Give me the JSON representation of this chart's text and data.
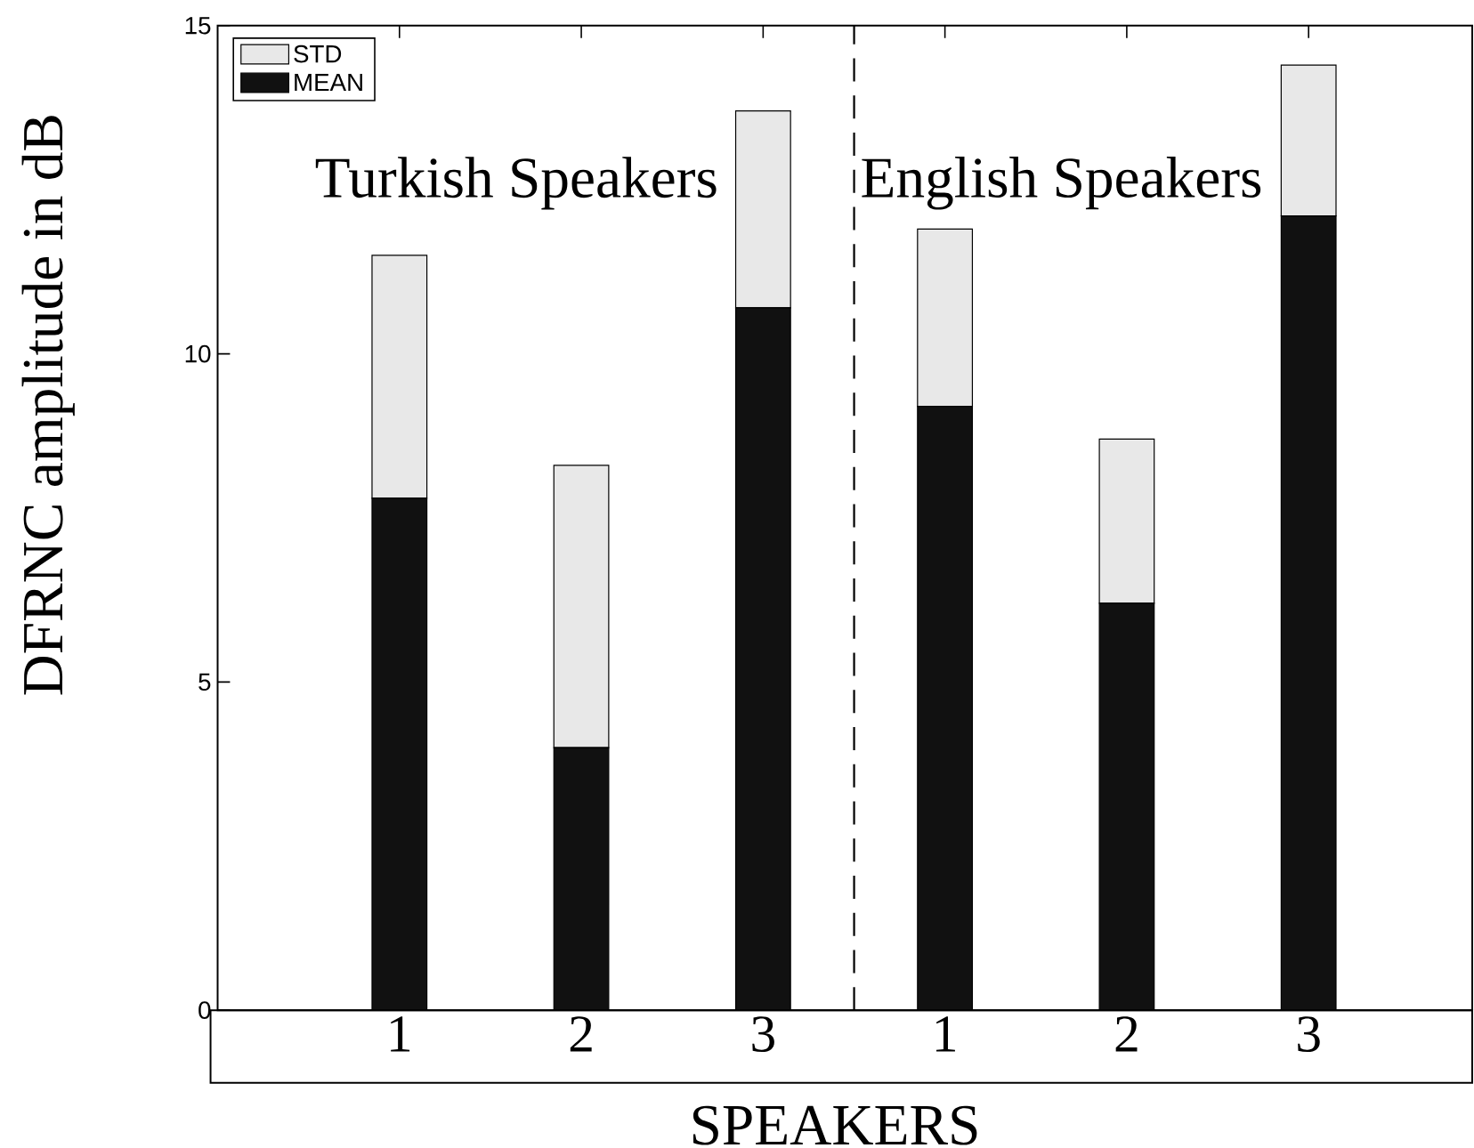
{
  "chart_data": {
    "type": "bar",
    "stacked": true,
    "xlabel": "SPEAKERS",
    "ylabel": "DFRNC amplitude in dB",
    "categories": [
      "1",
      "2",
      "3",
      "1",
      "2",
      "3"
    ],
    "series": [
      {
        "name": "MEAN",
        "color": "#111111",
        "values": [
          7.8,
          4.0,
          10.7,
          9.2,
          6.2,
          12.1
        ]
      },
      {
        "name": "STD",
        "color": "#e8e8e8",
        "values": [
          3.7,
          4.3,
          3.0,
          2.7,
          2.5,
          2.3
        ]
      }
    ],
    "ylim": [
      0,
      15
    ],
    "yticks": [
      0,
      5,
      10,
      15
    ],
    "legend": "top left",
    "annotations": [
      "Turkish Speakers",
      "English Speakers"
    ]
  }
}
